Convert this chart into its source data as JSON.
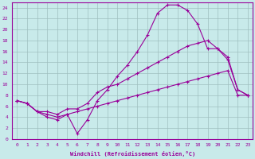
{
  "xlabel": "Windchill (Refroidissement éolien,°C)",
  "bg_color": "#c8eaea",
  "grid_color": "#9fbfbf",
  "line_color": "#990099",
  "xlim": [
    -0.5,
    23.5
  ],
  "ylim": [
    0,
    25
  ],
  "xticks": [
    0,
    1,
    2,
    3,
    4,
    5,
    6,
    7,
    8,
    9,
    10,
    11,
    12,
    13,
    14,
    15,
    16,
    17,
    18,
    19,
    20,
    21,
    22,
    23
  ],
  "yticks": [
    0,
    2,
    4,
    6,
    8,
    10,
    12,
    14,
    16,
    18,
    20,
    22,
    24
  ],
  "line1_x": [
    0,
    1,
    2,
    3,
    4,
    5,
    6,
    7,
    8,
    9,
    10,
    11,
    12,
    13,
    14,
    15,
    16,
    17,
    18,
    19,
    20,
    21,
    22,
    23
  ],
  "line1_y": [
    7.0,
    6.5,
    5.0,
    4.0,
    3.5,
    4.5,
    1.0,
    3.5,
    7.0,
    9.0,
    11.5,
    13.5,
    16.0,
    19.0,
    23.0,
    24.5,
    24.5,
    23.5,
    21.0,
    16.5,
    16.5,
    14.5,
    9.0,
    8.0
  ],
  "line2_x": [
    0,
    1,
    2,
    3,
    4,
    5,
    6,
    7,
    8,
    9,
    10,
    11,
    12,
    13,
    14,
    15,
    16,
    17,
    18,
    19,
    20,
    21,
    22,
    23
  ],
  "line2_y": [
    7.0,
    6.5,
    5.0,
    5.0,
    4.5,
    5.5,
    5.5,
    6.5,
    8.5,
    9.5,
    10.0,
    11.0,
    12.0,
    13.0,
    14.0,
    15.0,
    16.0,
    17.0,
    17.5,
    18.0,
    16.5,
    15.0,
    9.0,
    8.0
  ],
  "line3_x": [
    0,
    1,
    2,
    3,
    4,
    5,
    6,
    7,
    8,
    9,
    10,
    11,
    12,
    13,
    14,
    15,
    16,
    17,
    18,
    19,
    20,
    21,
    22,
    23
  ],
  "line3_y": [
    7.0,
    6.5,
    5.0,
    4.5,
    4.0,
    4.5,
    5.0,
    5.5,
    6.0,
    6.5,
    7.0,
    7.5,
    8.0,
    8.5,
    9.0,
    9.5,
    10.0,
    10.5,
    11.0,
    11.5,
    12.0,
    12.5,
    8.0,
    8.0
  ],
  "marker": "+"
}
